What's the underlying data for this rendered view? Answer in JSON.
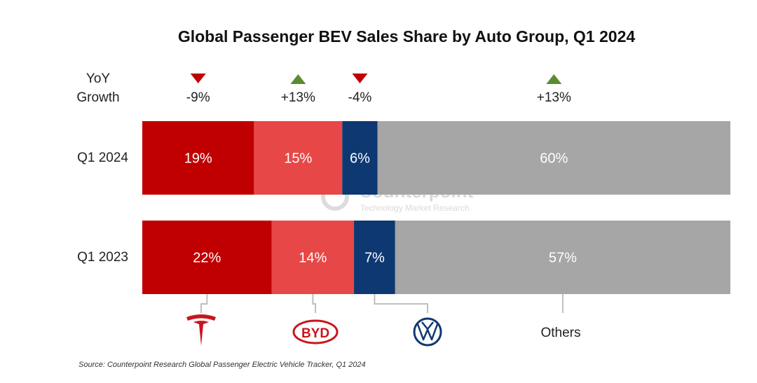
{
  "chart_data": {
    "type": "bar",
    "orientation": "horizontal-stacked-100",
    "title": "Global Passenger BEV Sales Share by Auto Group, Q1 2024",
    "categories": [
      "Q1 2024",
      "Q1 2023"
    ],
    "groups": [
      "Tesla",
      "BYD",
      "Volkswagen",
      "Others"
    ],
    "series": [
      {
        "name": "Tesla",
        "values": [
          19,
          22
        ],
        "labels": [
          "19%",
          "22%"
        ],
        "color": "#c00000"
      },
      {
        "name": "BYD",
        "values": [
          15,
          14
        ],
        "labels": [
          "15%",
          "14%"
        ],
        "color": "#e84747"
      },
      {
        "name": "Volkswagen",
        "values": [
          6,
          7
        ],
        "labels": [
          "6%",
          "7%"
        ],
        "color": "#0e3872"
      },
      {
        "name": "Others",
        "values": [
          60,
          57
        ],
        "labels": [
          "60%",
          "57%"
        ],
        "color": "#a6a6a6"
      }
    ],
    "yoy_header": [
      "YoY",
      "Growth"
    ],
    "yoy_growth": [
      {
        "label": "-9%",
        "direction": "down"
      },
      {
        "label": "+13%",
        "direction": "up"
      },
      {
        "label": "-4%",
        "direction": "down"
      },
      {
        "label": "+13%",
        "direction": "up"
      }
    ],
    "legend": {
      "placement": "bottom",
      "entries": [
        {
          "name": "Tesla",
          "icon": "tesla-logo"
        },
        {
          "name": "BYD",
          "icon": "byd-logo",
          "logo_text": "BYD"
        },
        {
          "name": "Volkswagen",
          "icon": "vw-logo"
        },
        {
          "name": "Others",
          "icon": "text",
          "text": "Others"
        }
      ]
    },
    "watermark": {
      "line1": "Counterpoint",
      "line2": "Technology Market Research"
    },
    "source": "Source: Counterpoint Research Global Passenger Electric Vehicle Tracker, Q1 2024"
  },
  "colors": {
    "up": "#5b8c32",
    "down": "#c00000",
    "connector": "#bfbfbf",
    "segment_text": "#ffffff",
    "vw_blue": "#0e3872"
  }
}
